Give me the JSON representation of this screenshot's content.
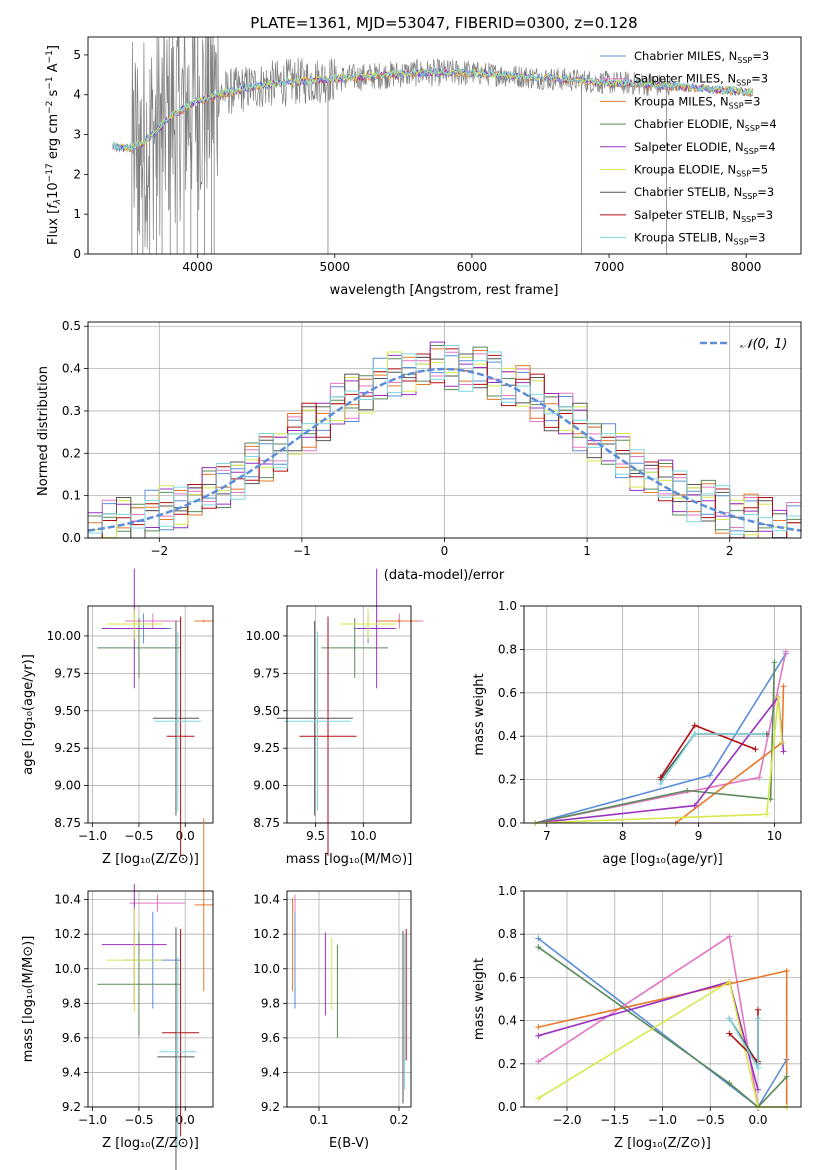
{
  "colors": {
    "chabrier_miles": "#5b8dd9",
    "salpeter_miles": "#e377c2",
    "kroupa_miles": "#e8782a",
    "chabrier_elodie": "#5a8a5a",
    "salpeter_elodie": "#9b30c0",
    "kroupa_elodie": "#d8e84a",
    "chabrier_stelib": "#555555",
    "salpeter_stelib": "#b01010",
    "kroupa_stelib": "#7fd6e0",
    "data": "#808080"
  },
  "chart_data": [
    {
      "id": "spectrum",
      "type": "line",
      "title": "PLATE=1361, MJD=53047, FIBERID=0300, z=0.128",
      "xlabel": "wavelength [Angstrom, rest frame]",
      "ylabel_pre": "Flux [",
      "ylabel_unit": "f",
      "ylabel_sub": "λ",
      "ylabel_post": "10",
      "ylabel_exp": "−17",
      "ylabel_rest": " erg cm",
      "ylabel_exp2": "−2",
      "ylabel_rest2": " s",
      "ylabel_exp3": "−1",
      "ylabel_rest3": " A",
      "ylabel_exp4": "−1",
      "ylabel_end": "]",
      "xlim": [
        3200,
        8400
      ],
      "ylim": [
        0,
        5.45
      ],
      "xticks": [
        4000,
        5000,
        6000,
        7000,
        8000
      ],
      "yticks": [
        0,
        1,
        2,
        3,
        4,
        5
      ],
      "continuum": {
        "x": [
          3380,
          3500,
          3600,
          3700,
          3800,
          3900,
          4000,
          4100,
          4200,
          4400,
          4600,
          4800,
          5000,
          5200,
          5400,
          5600,
          5800,
          6000,
          6200,
          6400,
          6600,
          6800,
          7000,
          7200,
          7400,
          7600,
          7800,
          8000,
          8050
        ],
        "y": [
          2.7,
          2.65,
          2.8,
          3.1,
          3.45,
          3.65,
          3.85,
          3.95,
          4.05,
          4.2,
          4.3,
          4.35,
          4.4,
          4.45,
          4.5,
          4.55,
          4.55,
          4.55,
          4.5,
          4.45,
          4.4,
          4.35,
          4.3,
          4.28,
          4.22,
          4.18,
          4.12,
          4.08,
          4.05
        ]
      },
      "legend": [
        {
          "label": "Chabrier MILES, N",
          "sub": "SSP",
          "post": "=3",
          "color": "chabrier_miles"
        },
        {
          "label": "Salpeter MILES, N",
          "sub": "SSP",
          "post": "=3",
          "color": "salpeter_miles"
        },
        {
          "label": "Kroupa MILES, N",
          "sub": "SSP",
          "post": "=3",
          "color": "kroupa_miles"
        },
        {
          "label": "Chabrier ELODIE, N",
          "sub": "SSP",
          "post": "=4",
          "color": "chabrier_elodie"
        },
        {
          "label": "Salpeter ELODIE, N",
          "sub": "SSP",
          "post": "=4",
          "color": "salpeter_elodie"
        },
        {
          "label": "Kroupa ELODIE, N",
          "sub": "SSP",
          "post": "=5",
          "color": "kroupa_elodie"
        },
        {
          "label": "Chabrier STELIB, N",
          "sub": "SSP",
          "post": "=3",
          "color": "chabrier_stelib"
        },
        {
          "label": "Salpeter STELIB, N",
          "sub": "SSP",
          "post": "=3",
          "color": "salpeter_stelib"
        },
        {
          "label": "Kroupa STELIB, N",
          "sub": "SSP",
          "post": "=3",
          "color": "kroupa_stelib"
        }
      ]
    },
    {
      "id": "residuals",
      "type": "histogram",
      "xlabel": "(data-model)/error",
      "ylabel": "Normed distribution",
      "xlim": [
        -2.5,
        2.5
      ],
      "ylim": [
        0,
        0.51
      ],
      "xticks": [
        -2,
        -1,
        0,
        1,
        2
      ],
      "yticks": [
        0.0,
        0.1,
        0.2,
        0.3,
        0.4,
        0.5
      ],
      "bin_width": 0.1,
      "legend_label": "𝒩(0, 1)",
      "gaussian": {
        "mu": 0,
        "sigma": 1,
        "color": "#5b8dd9"
      },
      "deviations": [
        0.01,
        -0.005,
        0.02,
        0.015,
        -0.01,
        0.025,
        -0.02,
        0.03,
        0.0,
        -0.015,
        0.035,
        -0.03,
        0.02,
        0.04,
        -0.025,
        0.01
      ]
    },
    {
      "id": "age_vs_Z",
      "type": "errorbar",
      "xlabel": "Z [log₁₀(Z/Z⊙)]",
      "ylabel": "age  [log₁₀(age/yr)]",
      "xlim": [
        -1.05,
        0.3
      ],
      "ylim": [
        8.75,
        10.2
      ],
      "xticks": [
        -1.0,
        -0.5,
        0.0
      ],
      "yticks": [
        8.75,
        9.0,
        9.25,
        9.5,
        9.75,
        10.0
      ],
      "points": [
        {
          "c": "chabrier_miles",
          "x": -0.45,
          "xerr": 0.3,
          "y": 10.05,
          "yerr": 0.1
        },
        {
          "c": "salpeter_miles",
          "x": -0.35,
          "xerr": 0.3,
          "y": 10.1,
          "yerr": 0.05
        },
        {
          "c": "kroupa_miles",
          "x": 0.2,
          "xerr": 0.1,
          "y": 10.1,
          "yerr": 0.01
        },
        {
          "c": "chabrier_elodie",
          "x": -0.5,
          "xerr": 0.45,
          "y": 9.92,
          "yerr": 0.2
        },
        {
          "c": "salpeter_elodie",
          "x": -0.55,
          "xerr": 0.35,
          "y": 10.05,
          "yerr": 0.4
        },
        {
          "c": "kroupa_elodie",
          "x": -0.55,
          "xerr": 0.3,
          "y": 10.08,
          "yerr": 0.1
        },
        {
          "c": "chabrier_stelib",
          "x": -0.1,
          "xerr": 0.25,
          "y": 9.45,
          "yerr": 0.65
        },
        {
          "c": "salpeter_stelib",
          "x": -0.05,
          "xerr": 0.15,
          "y": 9.33,
          "yerr": 0.8
        },
        {
          "c": "kroupa_stelib",
          "x": -0.08,
          "xerr": 0.25,
          "y": 9.43,
          "yerr": 0.6
        }
      ]
    },
    {
      "id": "age_vs_mass",
      "type": "errorbar",
      "xlabel": "mass [log₁₀(M/M⊙)]",
      "ylabel": "",
      "xlim": [
        9.2,
        10.5
      ],
      "ylim": [
        8.75,
        10.2
      ],
      "xticks": [
        9.5,
        10.0
      ],
      "yticks": [
        8.75,
        9.0,
        9.25,
        9.5,
        9.75,
        10.0
      ],
      "points": [
        {
          "c": "chabrier_miles",
          "x": 10.05,
          "xerr": 0.15,
          "y": 10.05,
          "yerr": 0.1
        },
        {
          "c": "salpeter_miles",
          "x": 10.38,
          "xerr": 0.25,
          "y": 10.1,
          "yerr": 0.05
        },
        {
          "c": "kroupa_miles",
          "x": 10.37,
          "xerr": 0.2,
          "y": 10.1,
          "yerr": 0.01
        },
        {
          "c": "chabrier_elodie",
          "x": 9.91,
          "xerr": 0.35,
          "y": 9.92,
          "yerr": 0.2
        },
        {
          "c": "salpeter_elodie",
          "x": 10.14,
          "xerr": 0.2,
          "y": 10.05,
          "yerr": 0.4
        },
        {
          "c": "kroupa_elodie",
          "x": 10.05,
          "xerr": 0.3,
          "y": 10.08,
          "yerr": 0.1
        },
        {
          "c": "chabrier_stelib",
          "x": 9.49,
          "xerr": 0.4,
          "y": 9.45,
          "yerr": 0.65
        },
        {
          "c": "salpeter_stelib",
          "x": 9.63,
          "xerr": 0.3,
          "y": 9.33,
          "yerr": 0.8
        },
        {
          "c": "kroupa_stelib",
          "x": 9.52,
          "xerr": 0.35,
          "y": 9.43,
          "yerr": 0.6
        }
      ]
    },
    {
      "id": "weight_vs_age",
      "type": "line",
      "xlabel": "age  [log₁₀(age/yr)]",
      "ylabel": "mass weight",
      "xlim": [
        6.7,
        10.35
      ],
      "ylim": [
        0,
        1.0
      ],
      "xticks": [
        7,
        8,
        9,
        10
      ],
      "yticks": [
        0.0,
        0.2,
        0.4,
        0.6,
        0.8,
        1.0
      ],
      "series": [
        {
          "c": "chabrier_miles",
          "x": [
            6.85,
            9.15,
            10.15
          ],
          "y": [
            0.0,
            0.22,
            0.78
          ]
        },
        {
          "c": "salpeter_miles",
          "x": [
            6.85,
            9.8,
            10.15
          ],
          "y": [
            0.0,
            0.21,
            0.79
          ]
        },
        {
          "c": "kroupa_miles",
          "x": [
            8.7,
            10.1,
            10.12
          ],
          "y": [
            0.0,
            0.37,
            0.63
          ]
        },
        {
          "c": "chabrier_elodie",
          "x": [
            6.85,
            8.85,
            9.95,
            10.0
          ],
          "y": [
            0.0,
            0.15,
            0.11,
            0.74
          ]
        },
        {
          "c": "salpeter_elodie",
          "x": [
            6.85,
            8.95,
            10.05,
            10.12
          ],
          "y": [
            0.0,
            0.08,
            0.58,
            0.33
          ]
        },
        {
          "c": "kroupa_elodie",
          "x": [
            6.85,
            9.9,
            10.05,
            10.1
          ],
          "y": [
            0.0,
            0.04,
            0.58,
            0.37
          ]
        },
        {
          "c": "chabrier_stelib",
          "x": [
            8.5,
            8.95,
            9.9
          ],
          "y": [
            0.2,
            0.41,
            0.41
          ]
        },
        {
          "c": "salpeter_stelib",
          "x": [
            8.5,
            8.95,
            9.75
          ],
          "y": [
            0.21,
            0.45,
            0.34
          ]
        },
        {
          "c": "kroupa_stelib",
          "x": [
            8.5,
            8.95,
            9.85
          ],
          "y": [
            0.18,
            0.41,
            0.41
          ]
        }
      ]
    },
    {
      "id": "mass_vs_Z",
      "type": "errorbar",
      "xlabel": "Z [log₁₀(Z/Z⊙)]",
      "ylabel": "mass [log₁₀(M/M⊙)]",
      "xlim": [
        -1.05,
        0.3
      ],
      "ylim": [
        9.2,
        10.45
      ],
      "xticks": [
        -1.0,
        -0.5,
        0.0
      ],
      "yticks": [
        9.2,
        9.4,
        9.6,
        9.8,
        10.0,
        10.2,
        10.4
      ],
      "points": [
        {
          "c": "chabrier_miles",
          "x": -0.35,
          "xerr": 0.3,
          "y": 10.05,
          "yerr": 0.28
        },
        {
          "c": "salpeter_miles",
          "x": -0.3,
          "xerr": 0.3,
          "y": 10.38,
          "yerr": 0.05
        },
        {
          "c": "kroupa_miles",
          "x": 0.2,
          "xerr": 0.1,
          "y": 10.37,
          "yerr": 0.5
        },
        {
          "c": "chabrier_elodie",
          "x": -0.5,
          "xerr": 0.45,
          "y": 9.91,
          "yerr": 0.3
        },
        {
          "c": "salpeter_elodie",
          "x": -0.55,
          "xerr": 0.35,
          "y": 10.14,
          "yerr": 0.35
        },
        {
          "c": "kroupa_elodie",
          "x": -0.55,
          "xerr": 0.3,
          "y": 10.05,
          "yerr": 0.3
        },
        {
          "c": "chabrier_stelib",
          "x": -0.1,
          "xerr": 0.2,
          "y": 9.49,
          "yerr": 0.75
        },
        {
          "c": "salpeter_stelib",
          "x": -0.05,
          "xerr": 0.2,
          "y": 9.63,
          "yerr": 0.6
        },
        {
          "c": "kroupa_stelib",
          "x": -0.08,
          "xerr": 0.2,
          "y": 9.52,
          "yerr": 0.55
        }
      ]
    },
    {
      "id": "mass_vs_ebv",
      "type": "errorbar",
      "xlabel": "E(B-V)",
      "ylabel": "",
      "xlim": [
        0.06,
        0.215
      ],
      "ylim": [
        9.2,
        10.45
      ],
      "xticks": [
        0.1,
        0.2
      ],
      "yticks": [
        9.2,
        9.4,
        9.6,
        9.8,
        10.0,
        10.2,
        10.4
      ],
      "points": [
        {
          "c": "chabrier_miles",
          "x": 0.07,
          "xerr": 0,
          "y": 10.05,
          "yerr": 0.28
        },
        {
          "c": "salpeter_miles",
          "x": 0.07,
          "xerr": 0,
          "y": 10.38,
          "yerr": 0.05
        },
        {
          "c": "kroupa_miles",
          "x": 0.067,
          "xerr": 0,
          "y": 10.14,
          "yerr": 0.27
        },
        {
          "c": "chabrier_elodie",
          "x": 0.123,
          "xerr": 0,
          "y": 9.87,
          "yerr": 0.27
        },
        {
          "c": "salpeter_elodie",
          "x": 0.108,
          "xerr": 0,
          "y": 9.97,
          "yerr": 0.24
        },
        {
          "c": "kroupa_elodie",
          "x": 0.116,
          "xerr": 0,
          "y": 9.97,
          "yerr": 0.21
        },
        {
          "c": "chabrier_stelib",
          "x": 0.205,
          "xerr": 0,
          "y": 9.72,
          "yerr": 0.5
        },
        {
          "c": "salpeter_stelib",
          "x": 0.209,
          "xerr": 0,
          "y": 9.85,
          "yerr": 0.38
        },
        {
          "c": "kroupa_stelib",
          "x": 0.207,
          "xerr": 0,
          "y": 9.75,
          "yerr": 0.45
        }
      ]
    },
    {
      "id": "weight_vs_Z",
      "type": "line",
      "xlabel": "Z [log₁₀(Z/Z⊙)]",
      "ylabel": "mass weight",
      "xlim": [
        -2.45,
        0.45
      ],
      "ylim": [
        0,
        1.0
      ],
      "xticks": [
        -2.0,
        -1.5,
        -1.0,
        -0.5,
        0.0
      ],
      "yticks": [
        0.0,
        0.2,
        0.4,
        0.6,
        0.8,
        1.0
      ],
      "series": [
        {
          "c": "chabrier_miles",
          "x": [
            -2.3,
            0.0,
            0.3
          ],
          "y": [
            0.78,
            0.0,
            0.22
          ]
        },
        {
          "c": "salpeter_miles",
          "x": [
            -2.3,
            -0.3,
            0.0
          ],
          "y": [
            0.21,
            0.79,
            0.0
          ]
        },
        {
          "c": "kroupa_miles",
          "x": [
            -2.3,
            0.3,
            0.3
          ],
          "y": [
            0.37,
            0.63,
            0.0
          ]
        },
        {
          "c": "chabrier_elodie",
          "x": [
            -2.3,
            -0.3,
            0.0,
            0.3
          ],
          "y": [
            0.74,
            0.11,
            0.0,
            0.14
          ]
        },
        {
          "c": "salpeter_elodie",
          "x": [
            -2.3,
            -0.3,
            0.0
          ],
          "y": [
            0.33,
            0.58,
            0.08
          ]
        },
        {
          "c": "kroupa_elodie",
          "x": [
            -2.3,
            -0.3,
            0.0,
            0.3
          ],
          "y": [
            0.04,
            0.58,
            0.0,
            0.0
          ]
        },
        {
          "c": "chabrier_stelib",
          "x": [
            -0.3,
            0.0,
            0.0
          ],
          "y": [
            0.41,
            0.2,
            0.41
          ]
        },
        {
          "c": "salpeter_stelib",
          "x": [
            -0.3,
            0.0,
            0.0
          ],
          "y": [
            0.34,
            0.21,
            0.45
          ]
        },
        {
          "c": "kroupa_stelib",
          "x": [
            -0.3,
            0.0,
            0.0
          ],
          "y": [
            0.41,
            0.18,
            0.41
          ]
        }
      ]
    }
  ]
}
